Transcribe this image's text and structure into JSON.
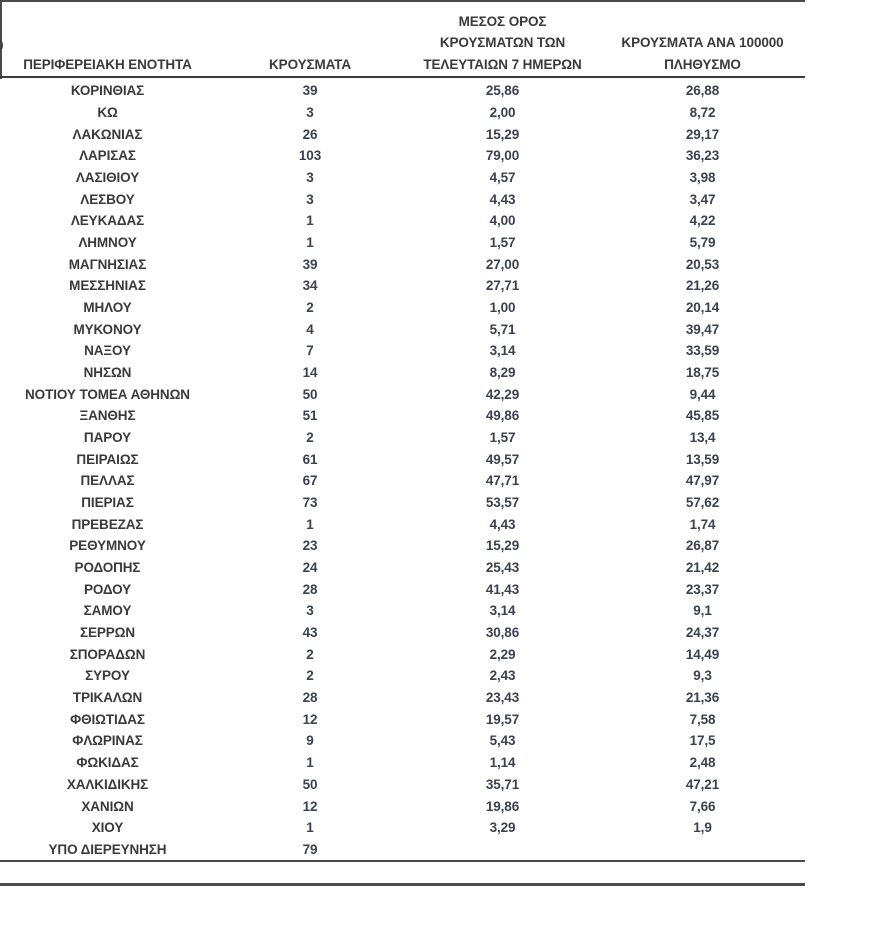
{
  "artifacts": {
    "clipped_left_text": "0"
  },
  "colors": {
    "rule": "#4a4a4a",
    "header_rule": "#3c3c3c",
    "text": "#3a3a3a",
    "number_text": "#3c4150",
    "background": "#ffffff"
  },
  "table": {
    "headers": {
      "col1": "ΠΕΡΙΦΕΡΕΙΑΚΗ ΕΝΟΤΗΤΑ",
      "col2": "ΚΡΟΥΣΜΑΤΑ",
      "col3_line1": "ΜΕΣΟΣ ΟΡΟΣ",
      "col3_line2": "ΚΡΟΥΣΜΑΤΩΝ ΤΩΝ",
      "col3_line3": "ΤΕΛΕΥΤΑΙΩΝ 7 ΗΜΕΡΩΝ",
      "col4_line1": "ΚΡΟΥΣΜΑΤΑ ΑΝΑ 100000",
      "col4_line2": "ΠΛΗΘΥΣΜΟ"
    },
    "rows": [
      {
        "name": "ΚΟΡΙΝΘΙΑΣ",
        "cases": "39",
        "avg7": "25,86",
        "per100k": "26,88"
      },
      {
        "name": "ΚΩ",
        "cases": "3",
        "avg7": "2,00",
        "per100k": "8,72"
      },
      {
        "name": "ΛΑΚΩΝΙΑΣ",
        "cases": "26",
        "avg7": "15,29",
        "per100k": "29,17"
      },
      {
        "name": "ΛΑΡΙΣΑΣ",
        "cases": "103",
        "avg7": "79,00",
        "per100k": "36,23"
      },
      {
        "name": "ΛΑΣΙΘΙΟΥ",
        "cases": "3",
        "avg7": "4,57",
        "per100k": "3,98"
      },
      {
        "name": "ΛΕΣΒΟΥ",
        "cases": "3",
        "avg7": "4,43",
        "per100k": "3,47"
      },
      {
        "name": "ΛΕΥΚΑΔΑΣ",
        "cases": "1",
        "avg7": "4,00",
        "per100k": "4,22"
      },
      {
        "name": "ΛΗΜΝΟΥ",
        "cases": "1",
        "avg7": "1,57",
        "per100k": "5,79"
      },
      {
        "name": "ΜΑΓΝΗΣΙΑΣ",
        "cases": "39",
        "avg7": "27,00",
        "per100k": "20,53"
      },
      {
        "name": "ΜΕΣΣΗΝΙΑΣ",
        "cases": "34",
        "avg7": "27,71",
        "per100k": "21,26"
      },
      {
        "name": "ΜΗΛΟΥ",
        "cases": "2",
        "avg7": "1,00",
        "per100k": "20,14"
      },
      {
        "name": "ΜΥΚΟΝΟΥ",
        "cases": "4",
        "avg7": "5,71",
        "per100k": "39,47"
      },
      {
        "name": "ΝΑΞΟΥ",
        "cases": "7",
        "avg7": "3,14",
        "per100k": "33,59"
      },
      {
        "name": "ΝΗΣΩΝ",
        "cases": "14",
        "avg7": "8,29",
        "per100k": "18,75"
      },
      {
        "name": "ΝΟΤΙΟΥ ΤΟΜΕΑ ΑΘΗΝΩΝ",
        "cases": "50",
        "avg7": "42,29",
        "per100k": "9,44"
      },
      {
        "name": "ΞΑΝΘΗΣ",
        "cases": "51",
        "avg7": "49,86",
        "per100k": "45,85"
      },
      {
        "name": "ΠΑΡΟΥ",
        "cases": "2",
        "avg7": "1,57",
        "per100k": "13,4"
      },
      {
        "name": "ΠΕΙΡΑΙΩΣ",
        "cases": "61",
        "avg7": "49,57",
        "per100k": "13,59"
      },
      {
        "name": "ΠΕΛΛΑΣ",
        "cases": "67",
        "avg7": "47,71",
        "per100k": "47,97"
      },
      {
        "name": "ΠΙΕΡΙΑΣ",
        "cases": "73",
        "avg7": "53,57",
        "per100k": "57,62"
      },
      {
        "name": "ΠΡΕΒΕΖΑΣ",
        "cases": "1",
        "avg7": "4,43",
        "per100k": "1,74"
      },
      {
        "name": "ΡΕΘΥΜΝΟΥ",
        "cases": "23",
        "avg7": "15,29",
        "per100k": "26,87"
      },
      {
        "name": "ΡΟΔΟΠΗΣ",
        "cases": "24",
        "avg7": "25,43",
        "per100k": "21,42"
      },
      {
        "name": "ΡΟΔΟΥ",
        "cases": "28",
        "avg7": "41,43",
        "per100k": "23,37"
      },
      {
        "name": "ΣΑΜΟΥ",
        "cases": "3",
        "avg7": "3,14",
        "per100k": "9,1"
      },
      {
        "name": "ΣΕΡΡΩΝ",
        "cases": "43",
        "avg7": "30,86",
        "per100k": "24,37"
      },
      {
        "name": "ΣΠΟΡΑΔΩΝ",
        "cases": "2",
        "avg7": "2,29",
        "per100k": "14,49"
      },
      {
        "name": "ΣΥΡΟΥ",
        "cases": "2",
        "avg7": "2,43",
        "per100k": "9,3"
      },
      {
        "name": "ΤΡΙΚΑΛΩΝ",
        "cases": "28",
        "avg7": "23,43",
        "per100k": "21,36"
      },
      {
        "name": "ΦΘΙΩΤΙΔΑΣ",
        "cases": "12",
        "avg7": "19,57",
        "per100k": "7,58"
      },
      {
        "name": "ΦΛΩΡΙΝΑΣ",
        "cases": "9",
        "avg7": "5,43",
        "per100k": "17,5"
      },
      {
        "name": "ΦΩΚΙΔΑΣ",
        "cases": "1",
        "avg7": "1,14",
        "per100k": "2,48"
      },
      {
        "name": "ΧΑΛΚΙΔΙΚΗΣ",
        "cases": "50",
        "avg7": "35,71",
        "per100k": "47,21"
      },
      {
        "name": "ΧΑΝΙΩΝ",
        "cases": "12",
        "avg7": "19,86",
        "per100k": "7,66"
      },
      {
        "name": "ΧΙΟΥ",
        "cases": "1",
        "avg7": "3,29",
        "per100k": "1,9"
      },
      {
        "name": "ΥΠΟ ΔΙΕΡΕΥΝΗΣΗ",
        "cases": "79",
        "avg7": "",
        "per100k": ""
      }
    ]
  }
}
